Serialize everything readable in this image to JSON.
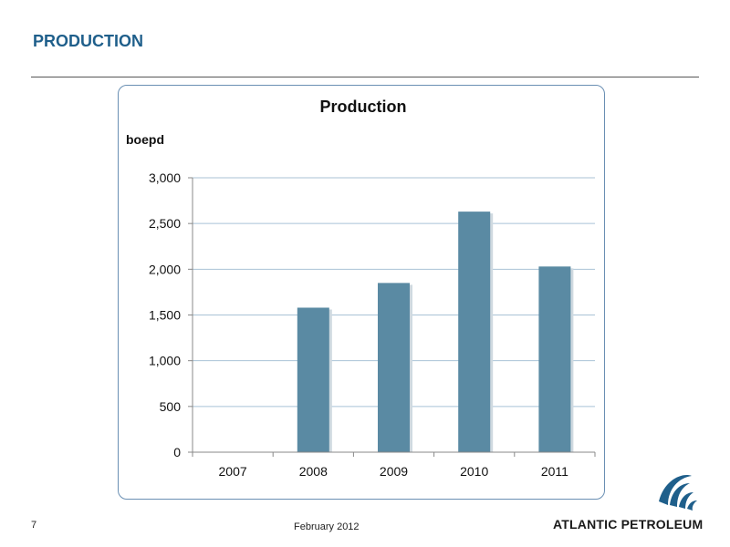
{
  "slide": {
    "title": "PRODUCTION",
    "page_number": "7",
    "date": "February 2012"
  },
  "logo": {
    "text": "ATLANTIC PETROLEUM",
    "icon": "wave-swoosh-icon"
  },
  "colors": {
    "title": "#1f5f8b",
    "bar": "#5a8aa3",
    "frame": "#6a8fb3",
    "logo_mark": "#1f5f8b"
  },
  "chart_data": {
    "type": "bar",
    "title": "Production",
    "ylabel": "boepd",
    "xlabel": "",
    "categories": [
      "2007",
      "2008",
      "2009",
      "2010",
      "2011"
    ],
    "values": [
      0,
      1580,
      1850,
      2630,
      2030
    ],
    "ylim": [
      0,
      3000
    ],
    "yticks": [
      0,
      500,
      1000,
      1500,
      2000,
      2500,
      3000
    ],
    "ytick_labels": [
      "0",
      "500",
      "1,000",
      "1,500",
      "2,000",
      "2,500",
      "3,000"
    ],
    "grid": true,
    "legend": "none"
  }
}
